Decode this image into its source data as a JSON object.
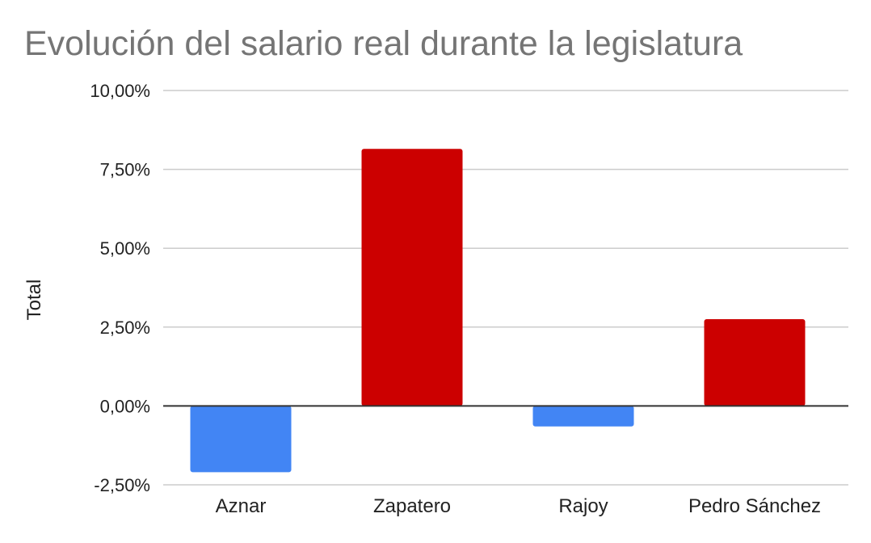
{
  "chart_data": {
    "type": "bar",
    "title": "Evolución del salario real durante la legislatura",
    "xlabel": "",
    "ylabel": "Total",
    "categories": [
      "Aznar",
      "Zapatero",
      "Rajoy",
      "Pedro Sánchez"
    ],
    "values": [
      -2.1,
      8.15,
      -0.65,
      2.75
    ],
    "bar_colors": [
      "#4285f4",
      "#cc0000",
      "#4285f4",
      "#cc0000"
    ],
    "ylim": [
      -2.5,
      10
    ],
    "yticks": [
      10,
      7.5,
      5,
      2.5,
      0,
      -2.5
    ],
    "ytick_labels": [
      "10,00%",
      "7,50%",
      "5,00%",
      "2,50%",
      "0,00%",
      "-2,50%"
    ],
    "grid": true,
    "legend": "none"
  },
  "colors": {
    "title": "#757575",
    "text": "#222222",
    "grid": "#cccccc",
    "zero_line": "#333333"
  }
}
